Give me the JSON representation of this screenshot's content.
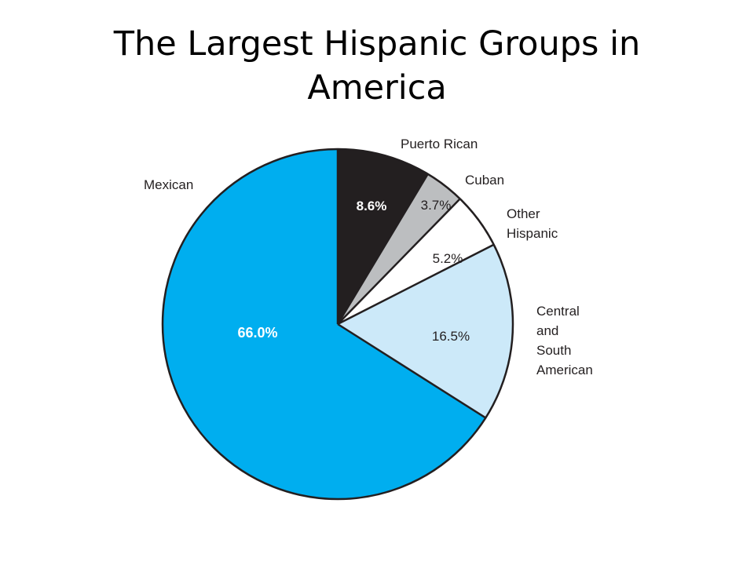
{
  "slide": {
    "title": "The Largest Hispanic Groups in America"
  },
  "chart_data": {
    "type": "pie",
    "title": "The Largest Hispanic Groups in America",
    "slices": [
      {
        "label": "Puerto Rican",
        "value": 8.6,
        "value_label": "8.6%",
        "color": "#231f20",
        "text_color": "#ffffff",
        "bold": true
      },
      {
        "label": "Cuban",
        "value": 3.7,
        "value_label": "3.7%",
        "color": "#bcbec0",
        "text_color": "#231f20",
        "bold": false
      },
      {
        "label": "Other Hispanic",
        "value": 5.2,
        "value_label": "5.2%",
        "color": "#ffffff",
        "text_color": "#231f20",
        "bold": false
      },
      {
        "label": "Central and South American",
        "value": 16.5,
        "value_label": "16.5%",
        "color": "#cce9f9",
        "text_color": "#231f20",
        "bold": false
      },
      {
        "label": "Mexican",
        "value": 66.0,
        "value_label": "66.0%",
        "color": "#00aeef",
        "text_color": "#ffffff",
        "bold": true
      }
    ],
    "start": "12 o'clock",
    "direction": "clockwise",
    "legend": "none"
  }
}
